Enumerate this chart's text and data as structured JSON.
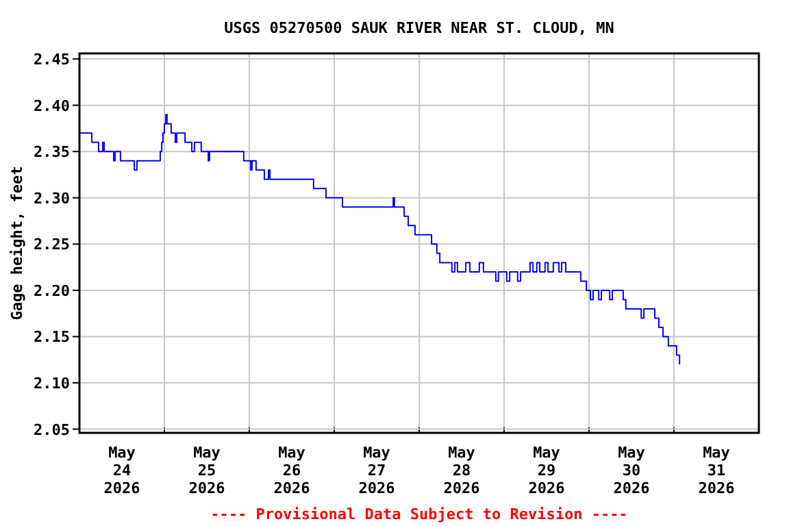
{
  "chart_data": {
    "type": "step",
    "title": "USGS 05270500 SAUK RIVER NEAR ST. CLOUD, MN",
    "ylabel": "Gage height, feet",
    "annotations": [
      "---- Provisional Data Subject to Revision ----"
    ],
    "grid": true,
    "line_style": "solid",
    "xlim": [
      "2026-05-24T00:00",
      "2026-06-01T00:00"
    ],
    "xticks": [
      {
        "value": "2026-05-24T12:00",
        "label": "May 24 2026"
      },
      {
        "value": "2026-05-25T00:00",
        "label": null
      },
      {
        "value": "2026-05-25T12:00",
        "label": "May 25 2026"
      },
      {
        "value": "2026-05-26T00:00",
        "label": null
      },
      {
        "value": "2026-05-26T12:00",
        "label": "May 26 2026"
      },
      {
        "value": "2026-05-27T00:00",
        "label": null
      },
      {
        "value": "2026-05-27T12:00",
        "label": "May 27 2026"
      },
      {
        "value": "2026-05-28T00:00",
        "label": null
      },
      {
        "value": "2026-05-28T12:00",
        "label": "May 28 2026"
      },
      {
        "value": "2026-05-29T00:00",
        "label": null
      },
      {
        "value": "2026-05-29T12:00",
        "label": "May 29 2026"
      },
      {
        "value": "2026-05-30T00:00",
        "label": null
      },
      {
        "value": "2026-05-30T12:00",
        "label": "May 30 2026"
      },
      {
        "value": "2026-05-31T00:00",
        "label": null
      },
      {
        "value": "2026-05-31T12:00",
        "label": "May 31 2026"
      }
    ],
    "ylim": [
      2.046,
      2.456
    ],
    "yticks": [
      2.05,
      {
        "value": 2.1,
        "label": "2.10"
      },
      2.15,
      {
        "value": 2.2,
        "label": "2.20"
      },
      2.25,
      {
        "value": 2.3,
        "label": "2.30"
      },
      2.35,
      {
        "value": 2.4,
        "label": "2.40"
      },
      2.45
    ],
    "series": [
      {
        "color": "#0000ff",
        "x": [
          "2026-05-24T00:00",
          "2026-05-24T03:30",
          "2026-05-24T05:25",
          "2026-05-24T06:35",
          "2026-05-24T07:00",
          "2026-05-24T09:40",
          "2026-05-24T10:05",
          "2026-05-24T11:35",
          "2026-05-24T15:30",
          "2026-05-24T16:15",
          "2026-05-24T22:50",
          "2026-05-24T23:15",
          "2026-05-24T23:35",
          "2026-05-25T00:00",
          "2026-05-25T00:25",
          "2026-05-25T00:45",
          "2026-05-25T01:55",
          "2026-05-25T03:05",
          "2026-05-25T03:30",
          "2026-05-25T05:50",
          "2026-05-25T07:45",
          "2026-05-25T08:30",
          "2026-05-25T10:25",
          "2026-05-25T12:25",
          "2026-05-25T12:45",
          "2026-05-25T22:25",
          "2026-05-26T00:25",
          "2026-05-26T00:45",
          "2026-05-26T01:55",
          "2026-05-26T04:15",
          "2026-05-26T05:25",
          "2026-05-26T05:50",
          "2026-05-26T18:10",
          "2026-05-26T21:40",
          "2026-05-27T02:20",
          "2026-05-27T16:40",
          "2026-05-27T17:00",
          "2026-05-27T19:45",
          "2026-05-27T20:55",
          "2026-05-27T22:50",
          "2026-05-28T03:30",
          "2026-05-28T05:00",
          "2026-05-28T05:50",
          "2026-05-28T09:15",
          "2026-05-28T10:05",
          "2026-05-28T10:50",
          "2026-05-28T13:10",
          "2026-05-28T14:20",
          "2026-05-28T17:00",
          "2026-05-28T18:10",
          "2026-05-28T21:40",
          "2026-05-28T22:25",
          "2026-05-29T00:45",
          "2026-05-29T01:35",
          "2026-05-29T03:50",
          "2026-05-29T04:40",
          "2026-05-29T07:20",
          "2026-05-29T08:10",
          "2026-05-29T09:15",
          "2026-05-29T10:05",
          "2026-05-29T11:35",
          "2026-05-29T12:25",
          "2026-05-29T13:55",
          "2026-05-29T15:30",
          "2026-05-29T16:15",
          "2026-05-29T17:25",
          "2026-05-29T21:40",
          "2026-05-29T23:15",
          "2026-05-30T00:25",
          "2026-05-30T01:10",
          "2026-05-30T02:45",
          "2026-05-30T03:30",
          "2026-05-30T05:50",
          "2026-05-30T06:35",
          "2026-05-30T09:40",
          "2026-05-30T10:25",
          "2026-05-30T14:45",
          "2026-05-30T15:30",
          "2026-05-30T18:35",
          "2026-05-30T19:45",
          "2026-05-30T20:55",
          "2026-05-30T22:25",
          "2026-05-31T00:45",
          "2026-05-31T01:35"
        ],
        "values": [
          2.37,
          2.36,
          2.35,
          2.36,
          2.35,
          2.34,
          2.35,
          2.34,
          2.33,
          2.34,
          2.35,
          2.36,
          2.37,
          2.38,
          2.39,
          2.38,
          2.37,
          2.36,
          2.37,
          2.36,
          2.35,
          2.36,
          2.35,
          2.34,
          2.35,
          2.34,
          2.33,
          2.34,
          2.33,
          2.32,
          2.33,
          2.32,
          2.31,
          2.3,
          2.29,
          2.3,
          2.29,
          2.28,
          2.27,
          2.26,
          2.25,
          2.24,
          2.23,
          2.22,
          2.23,
          2.22,
          2.23,
          2.22,
          2.23,
          2.22,
          2.21,
          2.22,
          2.21,
          2.22,
          2.21,
          2.22,
          2.23,
          2.22,
          2.23,
          2.22,
          2.23,
          2.22,
          2.23,
          2.22,
          2.23,
          2.22,
          2.21,
          2.2,
          2.19,
          2.2,
          2.19,
          2.2,
          2.19,
          2.2,
          2.19,
          2.18,
          2.17,
          2.18,
          2.17,
          2.16,
          2.15,
          2.14,
          2.13,
          2.12
        ]
      }
    ]
  }
}
